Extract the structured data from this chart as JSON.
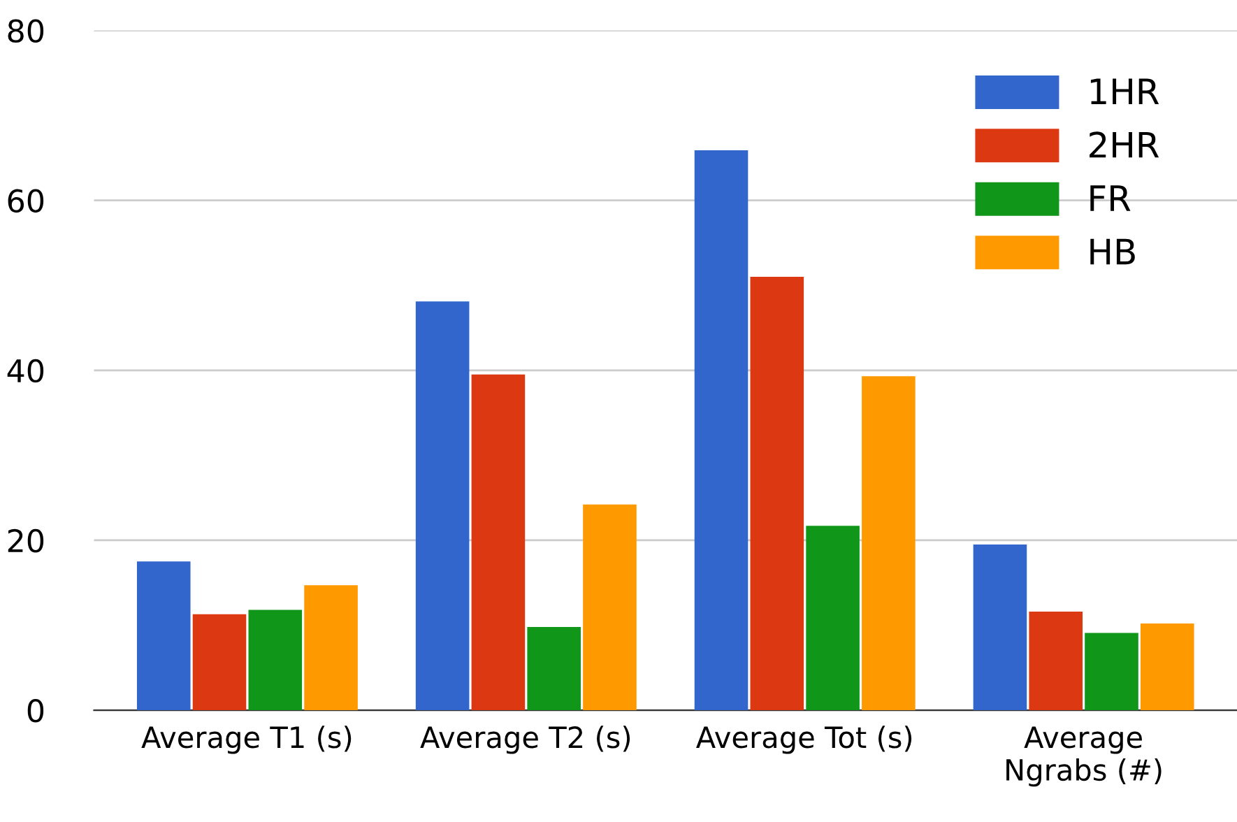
{
  "chart_data": {
    "type": "bar",
    "categories": [
      "Average T1 (s)",
      "Average T2 (s)",
      "Average Tot (s)",
      "Average\nNgrabs (#)"
    ],
    "series": [
      {
        "name": "1HR",
        "color": "#3366cc",
        "values": [
          17.5,
          48.1,
          65.9,
          19.5
        ]
      },
      {
        "name": "2HR",
        "color": "#dc3912",
        "values": [
          11.3,
          39.5,
          51.0,
          11.6
        ]
      },
      {
        "name": "FR",
        "color": "#109618",
        "values": [
          11.8,
          9.8,
          21.7,
          9.1
        ]
      },
      {
        "name": "HB",
        "color": "#ff9900",
        "values": [
          14.7,
          24.2,
          39.3,
          10.2
        ]
      }
    ],
    "ylim": [
      0,
      80
    ],
    "yticks": [
      0,
      20,
      40,
      60,
      80
    ],
    "grid": "y",
    "legend": "top right"
  }
}
